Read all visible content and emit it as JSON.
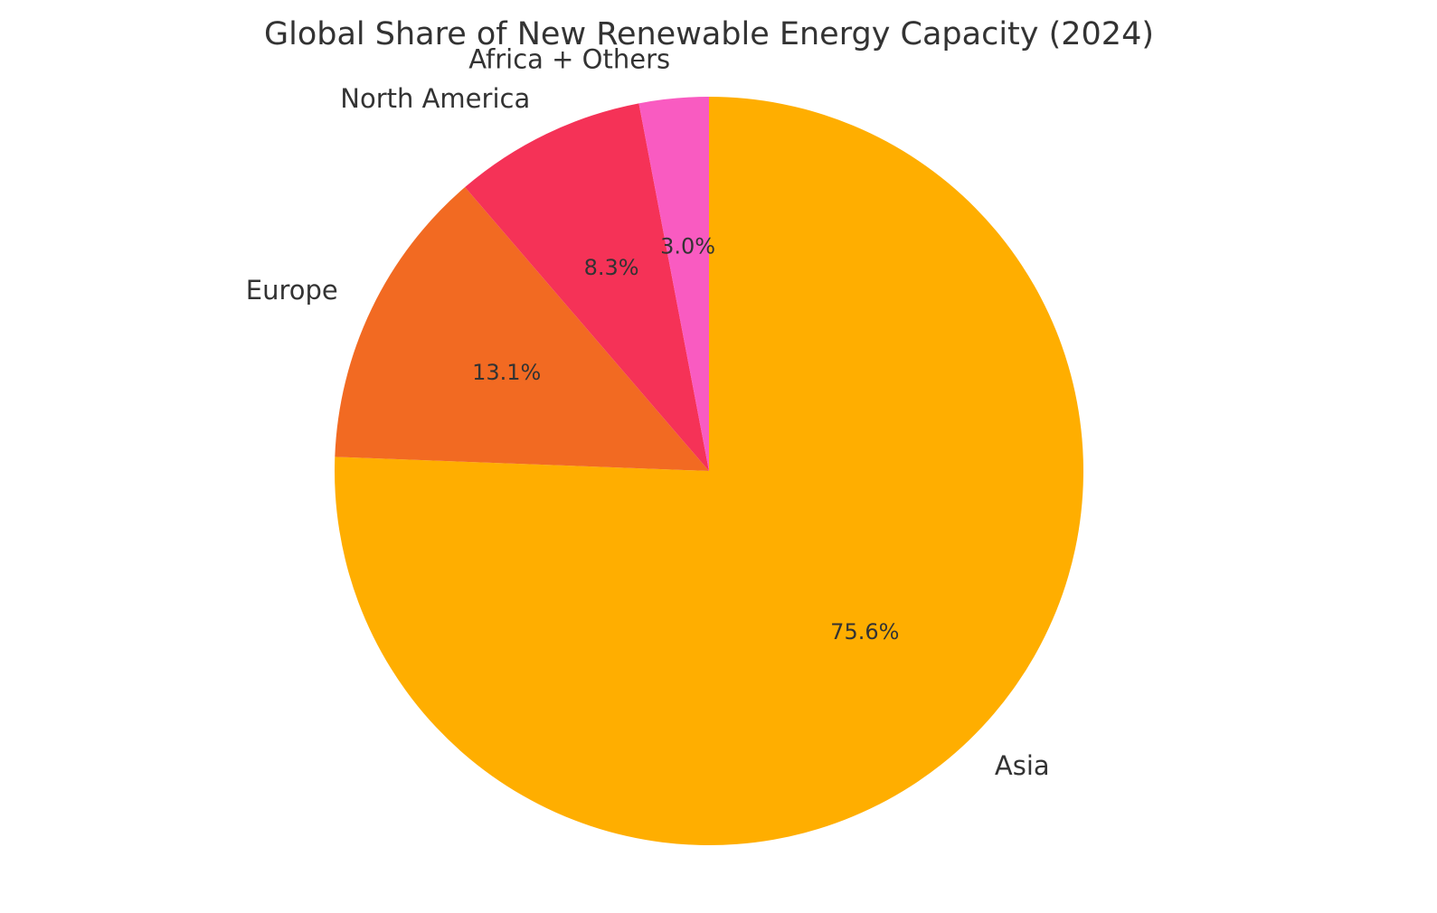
{
  "chart_data": {
    "type": "pie",
    "title": "Global Share of New Renewable Energy Capacity (2024)",
    "categories": [
      "Asia",
      "Europe",
      "North America",
      "Africa + Others"
    ],
    "values": [
      75.6,
      13.1,
      8.3,
      3.0
    ],
    "value_labels": [
      "75.6%",
      "13.1%",
      "8.3%",
      "3.0%"
    ],
    "colors": [
      "#FFAE00",
      "#F26A22",
      "#F53257",
      "#F95BC1"
    ],
    "start_angle": 90,
    "direction": "clockwise"
  }
}
